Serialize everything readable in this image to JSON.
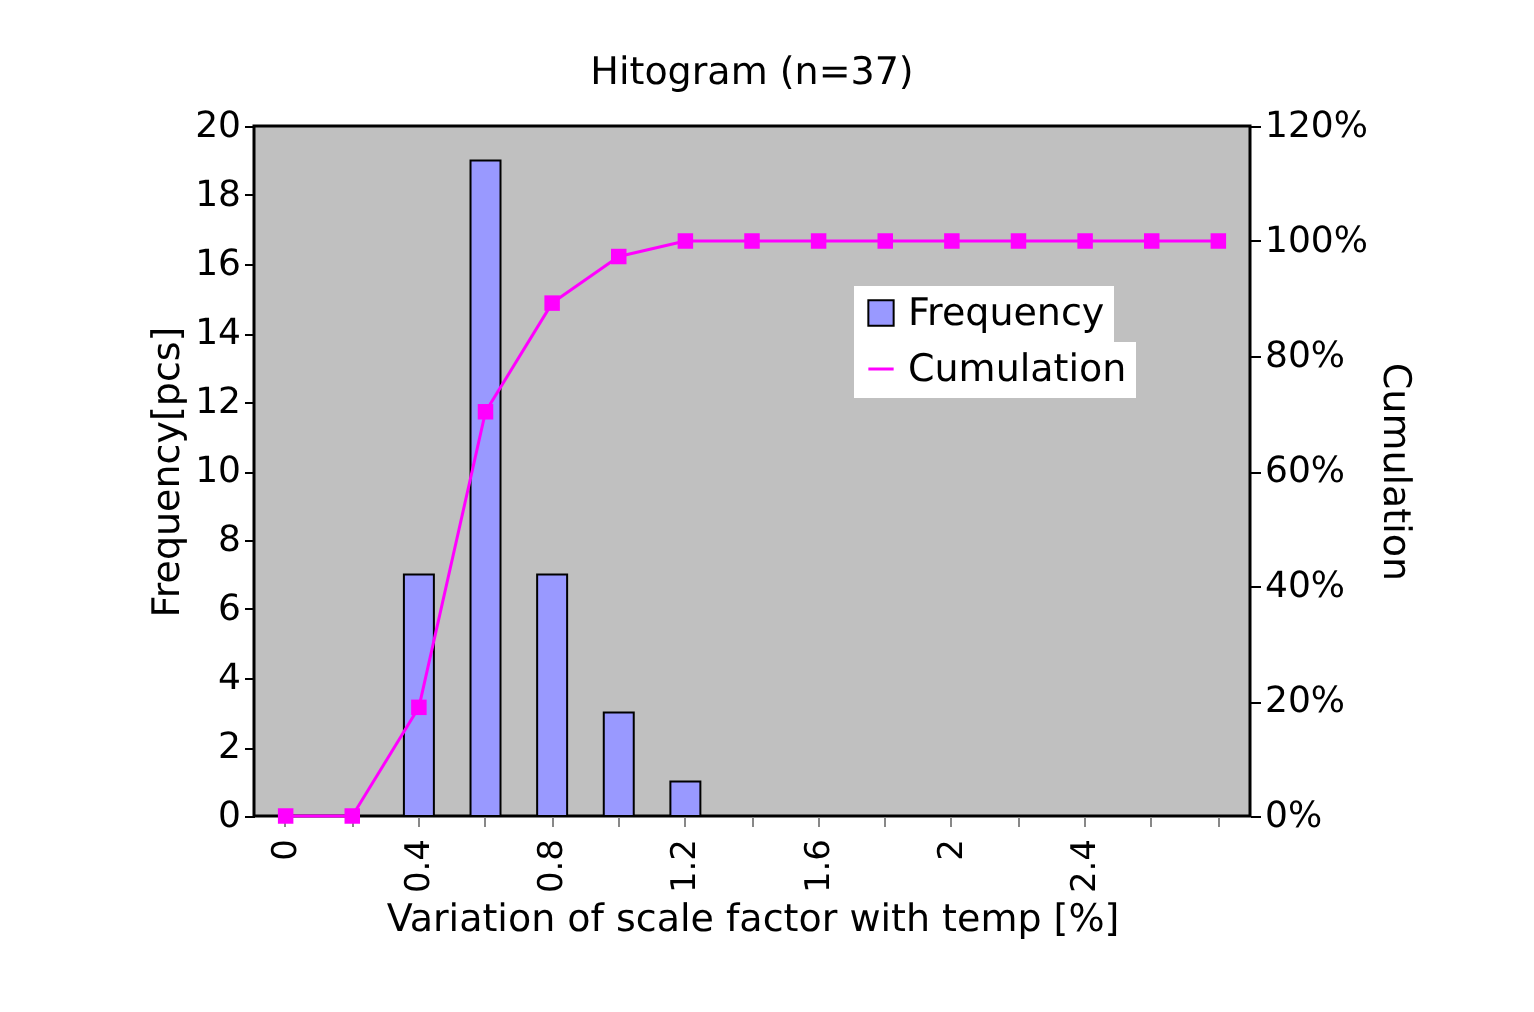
{
  "chart_data": {
    "type": "bar",
    "title": "Hitogram (n=37)",
    "xlabel": "Variation of scale factor with temp [%]",
    "ylabel": "Frequency[pcs]",
    "y2label": "Cumulation",
    "categories": [
      "0",
      null,
      "0.4",
      null,
      "0.8",
      null,
      "1.2",
      null,
      "1.6",
      null,
      "2",
      null,
      "2.4",
      null,
      null
    ],
    "series": [
      {
        "name": "Frequency",
        "color": "#9999ff",
        "values": [
          0,
          0,
          7,
          19,
          7,
          3,
          1,
          0,
          0,
          0,
          0,
          0,
          0,
          0,
          0
        ]
      },
      {
        "name": "Cumulation",
        "type": "line",
        "axis": "y2",
        "color": "#ff00ff",
        "values": [
          0,
          0,
          18.9,
          70.3,
          89.2,
          97.3,
          100,
          100,
          100,
          100,
          100,
          100,
          100,
          100,
          100
        ]
      }
    ],
    "ylim": [
      0,
      20
    ],
    "yticks": [
      0,
      2,
      4,
      6,
      8,
      10,
      12,
      14,
      16,
      18,
      20
    ],
    "y2lim": [
      0,
      120
    ],
    "y2ticks": [
      {
        "value": 0,
        "label": "0%"
      },
      {
        "value": 20,
        "label": "20%"
      },
      {
        "value": 40,
        "label": "40%"
      },
      {
        "value": 60,
        "label": "60%"
      },
      {
        "value": 80,
        "label": "80%"
      },
      {
        "value": 100,
        "label": "100%"
      },
      {
        "value": 120,
        "label": "120%"
      }
    ],
    "legend": "right",
    "marker": "square",
    "grid": false
  }
}
